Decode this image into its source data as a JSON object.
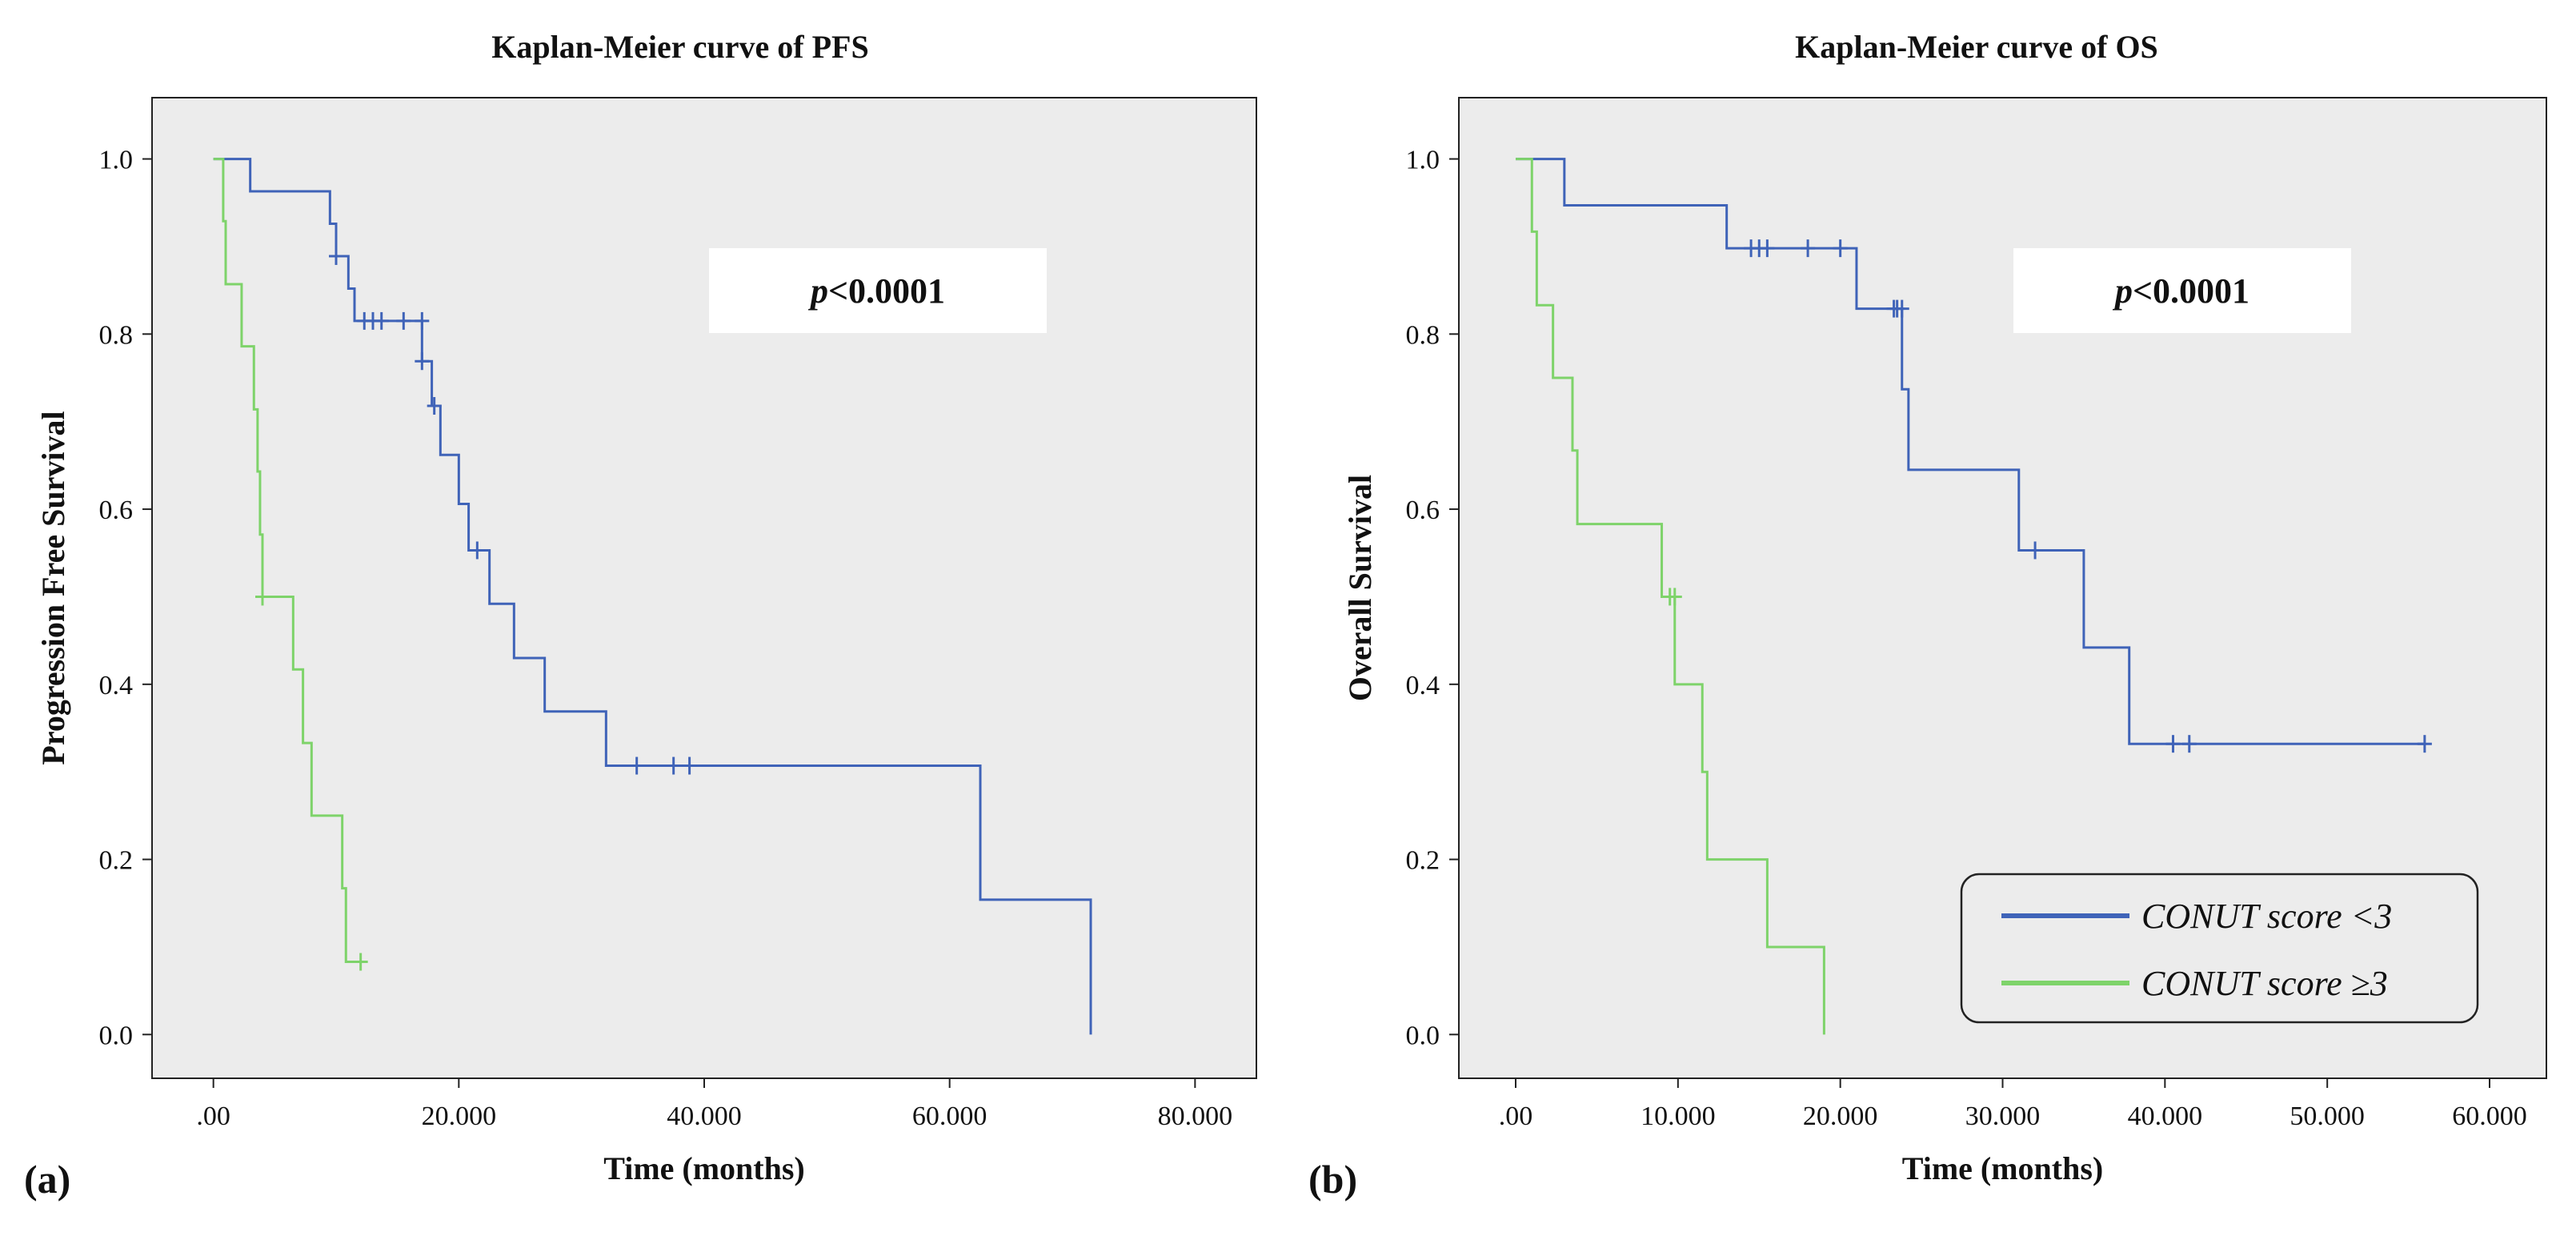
{
  "panels": [
    {
      "panel_label": "(a)",
      "pvalue_italic": "p",
      "pvalue_rest": "<0.0001"
    },
    {
      "panel_label": "(b)",
      "pvalue_italic": "p",
      "pvalue_rest": "<0.0001"
    }
  ],
  "legend": {
    "items": [
      {
        "label": "CONUT score <3",
        "color": "#3f63b8"
      },
      {
        "label": "CONUT score ≥3",
        "color": "#7ed36a"
      }
    ]
  },
  "colors": {
    "plot_background": "#ececec",
    "group_low": "#3f63b8",
    "group_high": "#7ed36a"
  },
  "chart_data": [
    {
      "type": "line",
      "subtype": "kaplan-meier-step",
      "title": "Kaplan-Meier curve of PFS",
      "xlabel": "Time (months)",
      "ylabel": "Progression Free Survival",
      "xlim": [
        -5,
        85
      ],
      "ylim": [
        -0.05,
        1.07
      ],
      "xticks": [
        0,
        20,
        40,
        60,
        80
      ],
      "xtick_labels": [
        ".00",
        "20.000",
        "40.000",
        "60.000",
        "80.000"
      ],
      "yticks": [
        0.0,
        0.2,
        0.4,
        0.6,
        0.8,
        1.0
      ],
      "ytick_labels": [
        "0.0",
        "0.2",
        "0.4",
        "0.6",
        "0.8",
        "1.0"
      ],
      "grid": false,
      "annotation": "p<0.0001",
      "series": [
        {
          "name": "CONUT score <3",
          "color": "#3f63b8",
          "steps": [
            [
              0,
              1.0
            ],
            [
              3,
              0.963
            ],
            [
              9.5,
              0.926
            ],
            [
              10,
              0.889
            ],
            [
              11,
              0.852
            ],
            [
              11.5,
              0.815
            ],
            [
              17,
              0.769
            ],
            [
              17.8,
              0.718
            ],
            [
              18.5,
              0.662
            ],
            [
              20,
              0.606
            ],
            [
              20.8,
              0.553
            ],
            [
              22.5,
              0.492
            ],
            [
              24.5,
              0.43
            ],
            [
              27,
              0.369
            ],
            [
              32,
              0.307
            ],
            [
              62.5,
              0.154
            ],
            [
              71.5,
              0.0
            ]
          ],
          "end_x": 71.5,
          "censored": [
            [
              10,
              0.889
            ],
            [
              12.3,
              0.815
            ],
            [
              13,
              0.815
            ],
            [
              13.7,
              0.815
            ],
            [
              15.5,
              0.815
            ],
            [
              17,
              0.815
            ],
            [
              17,
              0.769
            ],
            [
              18,
              0.718
            ],
            [
              21.5,
              0.553
            ],
            [
              34.5,
              0.307
            ],
            [
              37.5,
              0.307
            ],
            [
              38.8,
              0.307
            ]
          ]
        },
        {
          "name": "CONUT score ≥3",
          "color": "#7ed36a",
          "steps": [
            [
              0,
              1.0
            ],
            [
              0.8,
              0.929
            ],
            [
              1,
              0.857
            ],
            [
              2.3,
              0.786
            ],
            [
              3.3,
              0.714
            ],
            [
              3.6,
              0.643
            ],
            [
              3.8,
              0.571
            ],
            [
              4,
              0.5
            ],
            [
              6.5,
              0.417
            ],
            [
              7.3,
              0.333
            ],
            [
              8,
              0.25
            ],
            [
              10.5,
              0.167
            ],
            [
              10.8,
              0.083
            ]
          ],
          "end_x": 12,
          "censored": [
            [
              4,
              0.5
            ],
            [
              12,
              0.083
            ]
          ]
        }
      ]
    },
    {
      "type": "line",
      "subtype": "kaplan-meier-step",
      "title": "Kaplan-Meier curve of OS",
      "xlabel": "Time (months)",
      "ylabel": "Overall Survival",
      "xlim": [
        -3.5,
        63.5
      ],
      "ylim": [
        -0.05,
        1.07
      ],
      "xticks": [
        0,
        10,
        20,
        30,
        40,
        50,
        60
      ],
      "xtick_labels": [
        ".00",
        "10.000",
        "20.000",
        "30.000",
        "40.000",
        "50.000",
        "60.000"
      ],
      "yticks": [
        0.0,
        0.2,
        0.4,
        0.6,
        0.8,
        1.0
      ],
      "ytick_labels": [
        "0.0",
        "0.2",
        "0.4",
        "0.6",
        "0.8",
        "1.0"
      ],
      "grid": false,
      "legend_position": "bottom-right",
      "annotation": "p<0.0001",
      "series": [
        {
          "name": "CONUT score <3",
          "color": "#3f63b8",
          "steps": [
            [
              0,
              1.0
            ],
            [
              3,
              0.947
            ],
            [
              13,
              0.898
            ],
            [
              21,
              0.829
            ],
            [
              23.8,
              0.737
            ],
            [
              24.2,
              0.645
            ],
            [
              31,
              0.553
            ],
            [
              35,
              0.442
            ],
            [
              37.8,
              0.332
            ]
          ],
          "end_x": 56,
          "censored": [
            [
              14.5,
              0.898
            ],
            [
              15,
              0.898
            ],
            [
              15.5,
              0.898
            ],
            [
              18,
              0.898
            ],
            [
              20,
              0.898
            ],
            [
              23.3,
              0.829
            ],
            [
              23.5,
              0.829
            ],
            [
              23.8,
              0.829
            ],
            [
              32,
              0.553
            ],
            [
              40.5,
              0.332
            ],
            [
              41.5,
              0.332
            ],
            [
              56,
              0.332
            ]
          ]
        },
        {
          "name": "CONUT score ≥3",
          "color": "#7ed36a",
          "steps": [
            [
              0,
              1.0
            ],
            [
              1,
              0.917
            ],
            [
              1.3,
              0.833
            ],
            [
              2.3,
              0.75
            ],
            [
              3.5,
              0.667
            ],
            [
              3.8,
              0.583
            ],
            [
              9,
              0.5
            ],
            [
              9.8,
              0.4
            ],
            [
              11.5,
              0.3
            ],
            [
              11.8,
              0.2
            ],
            [
              15.5,
              0.1
            ],
            [
              19,
              0.0
            ]
          ],
          "end_x": 19,
          "censored": [
            [
              9.5,
              0.5
            ],
            [
              9.8,
              0.5
            ]
          ]
        }
      ]
    }
  ]
}
